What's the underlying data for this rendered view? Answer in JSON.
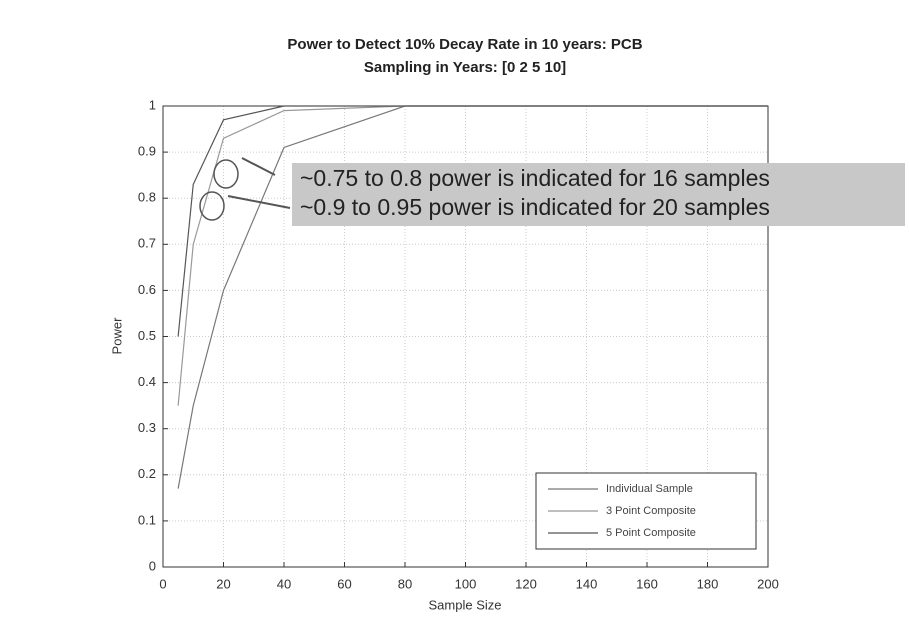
{
  "chart_data": {
    "type": "line",
    "title": "Power to Detect 10% Decay Rate in 10 years: PCB",
    "subtitle": "Sampling in Years: [0   2   5  10]",
    "x_label": "Sample Size",
    "y_label": "Power",
    "x": [
      5,
      10,
      20,
      40,
      80,
      200
    ],
    "series": [
      {
        "name": "Individual Sample",
        "color": "#777777",
        "values": [
          0.17,
          0.35,
          0.6,
          0.91,
          1.0,
          1.0
        ]
      },
      {
        "name": "3 Point Composite",
        "color": "#999999",
        "values": [
          0.35,
          0.7,
          0.93,
          0.99,
          1.0,
          1.0
        ]
      },
      {
        "name": "5 Point Composite",
        "color": "#555555",
        "values": [
          0.5,
          0.83,
          0.97,
          1.0,
          1.0,
          1.0
        ]
      }
    ],
    "xlim": [
      0,
      200
    ],
    "xticks": [
      0,
      20,
      40,
      60,
      80,
      100,
      120,
      140,
      160,
      180,
      200
    ],
    "ylim": [
      0,
      1
    ],
    "yticks": [
      0,
      0.1,
      0.2,
      0.3,
      0.4,
      0.5,
      0.6,
      0.7,
      0.8,
      0.9,
      1
    ],
    "grid": true,
    "legend": "lower-right",
    "annotations": [
      "~0.75 to 0.8 power is indicated for 16 samples",
      "~0.9 to 0.95 power is indicated for 20 samples"
    ]
  }
}
